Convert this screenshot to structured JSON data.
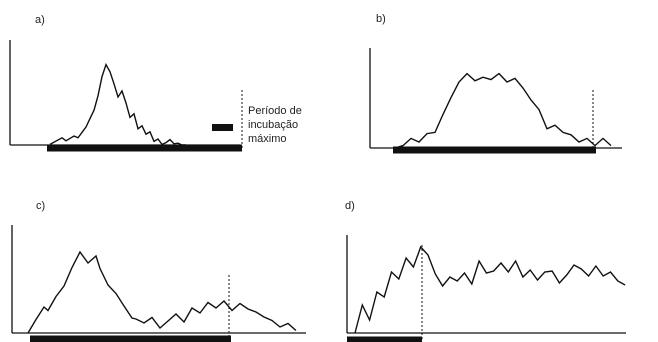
{
  "legend": {
    "lines": [
      "Período de",
      "incubação",
      "máximo"
    ]
  },
  "chart_data": [
    {
      "type": "line",
      "panel_label": "a)",
      "marker_line_x": 242,
      "x": [
        0,
        3,
        4,
        6,
        7,
        9,
        10,
        11,
        12,
        13,
        14,
        15,
        16,
        17,
        18,
        19,
        20,
        21,
        22,
        23,
        24,
        25,
        26,
        27,
        28,
        29,
        30,
        31,
        32,
        33,
        34
      ],
      "values": [
        0.5,
        6,
        3.5,
        7.5,
        6,
        15,
        22,
        29,
        41,
        57,
        67,
        61,
        51,
        40,
        45,
        35,
        23,
        26,
        13.5,
        16,
        9,
        11,
        3,
        5,
        0.5,
        2,
        4.5,
        1,
        1.5,
        0,
        0
      ],
      "bar_range": [
        0,
        36
      ]
    },
    {
      "type": "line",
      "panel_label": "b)",
      "marker_line_x": 593,
      "x": [
        0,
        2,
        4,
        6,
        8,
        10,
        12,
        14,
        16,
        18,
        20,
        22,
        24,
        26,
        28,
        30,
        32,
        34,
        36,
        38,
        40,
        42,
        44,
        46,
        48,
        50,
        52,
        54
      ],
      "values": [
        0,
        2,
        8,
        5,
        12,
        13,
        28,
        42,
        55,
        62,
        56,
        59,
        57,
        62,
        55,
        58,
        50,
        40,
        32,
        16,
        19,
        13,
        11,
        5,
        8,
        2,
        8,
        2
      ],
      "bar_range": [
        0,
        54
      ]
    },
    {
      "type": "line",
      "panel_label": "c)",
      "marker_line_x": 229,
      "x": [
        0,
        2,
        4,
        5,
        7,
        9,
        11,
        13,
        15,
        17,
        18,
        20,
        22,
        24,
        26,
        27,
        29,
        31,
        33,
        35,
        37,
        39,
        41,
        43,
        45,
        47,
        49,
        51,
        53,
        55,
        57,
        59,
        61,
        63,
        65,
        67
      ],
      "values": [
        0,
        13.5,
        26,
        22.5,
        36.5,
        47,
        65.5,
        81,
        70,
        77,
        64.5,
        48,
        39.5,
        27,
        15,
        14,
        10,
        15.5,
        5,
        12,
        19,
        11,
        25,
        20,
        30.5,
        25,
        32,
        22.5,
        29.5,
        24,
        21,
        16,
        12.5,
        6,
        9.5,
        2.5
      ],
      "bar_range": [
        0,
        46
      ]
    },
    {
      "type": "line",
      "panel_label": "d)",
      "marker_line_x": 422,
      "x": [
        0,
        2,
        4,
        6,
        8,
        10,
        12,
        14,
        16,
        18,
        20,
        22,
        24,
        26,
        28,
        30,
        32,
        34,
        36,
        38,
        40,
        42,
        44,
        46,
        48,
        50,
        52,
        54,
        56,
        58,
        60,
        62,
        64,
        66,
        68,
        70,
        72,
        74
      ],
      "values": [
        0,
        28,
        13,
        41,
        36,
        61,
        54,
        75,
        66,
        86,
        78,
        59,
        47,
        56,
        52,
        60,
        49,
        72,
        60,
        62,
        70,
        61,
        72,
        56,
        63,
        53,
        61,
        62,
        50,
        58,
        68,
        64,
        57,
        67,
        57,
        61,
        52,
        48
      ],
      "bar_range": [
        0,
        18
      ]
    }
  ]
}
